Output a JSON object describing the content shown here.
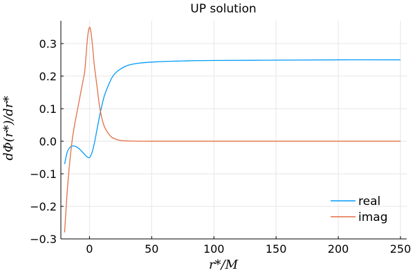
{
  "chart_data": {
    "type": "line",
    "title": "UP solution",
    "xlabel": "r*/M",
    "ylabel": "dΦ(r*)/dr*",
    "xlim": [
      -23,
      255
    ],
    "ylim": [
      -0.3,
      0.37
    ],
    "xticks": [
      0,
      50,
      100,
      150,
      200,
      250
    ],
    "xtick_labels": [
      "0",
      "50",
      "100",
      "150",
      "200",
      "250"
    ],
    "yticks": [
      -0.3,
      -0.2,
      -0.1,
      0.0,
      0.1,
      0.2,
      0.3
    ],
    "ytick_labels": [
      "−0.3",
      "−0.2",
      "−0.1",
      "0.0",
      "0.1",
      "0.2",
      "0.3"
    ],
    "grid": true,
    "legend_position": "bottom-right",
    "series": [
      {
        "name": "real",
        "color": "#009AFA",
        "x": [
          -20,
          -18,
          -16,
          -14,
          -12,
          -10,
          -8,
          -6,
          -4,
          -2,
          0,
          2,
          4,
          6,
          8,
          10,
          12,
          15,
          18,
          21,
          25,
          30,
          35,
          40,
          50,
          60,
          80,
          100,
          150,
          200,
          250
        ],
        "y": [
          -0.07,
          -0.035,
          -0.02,
          -0.015,
          -0.015,
          -0.018,
          -0.024,
          -0.032,
          -0.04,
          -0.048,
          -0.05,
          -0.035,
          -0.005,
          0.035,
          0.075,
          0.11,
          0.14,
          0.17,
          0.195,
          0.21,
          0.222,
          0.232,
          0.237,
          0.24,
          0.243,
          0.245,
          0.247,
          0.248,
          0.249,
          0.25,
          0.25
        ]
      },
      {
        "name": "imag",
        "color": "#E26F46",
        "x": [
          -20,
          -18,
          -16,
          -14,
          -12,
          -10,
          -8,
          -6,
          -4,
          -3,
          -2,
          -1,
          0,
          1,
          2,
          3,
          4,
          6,
          8,
          10,
          12,
          15,
          18,
          22,
          26,
          30,
          40,
          50,
          100,
          150,
          200,
          250
        ],
        "y": [
          -0.28,
          -0.16,
          -0.07,
          0.0,
          0.05,
          0.09,
          0.13,
          0.17,
          0.21,
          0.25,
          0.3,
          0.335,
          0.35,
          0.34,
          0.31,
          0.27,
          0.23,
          0.17,
          0.11,
          0.07,
          0.045,
          0.025,
          0.012,
          0.005,
          0.002,
          0.001,
          0.0,
          0.0,
          0.0,
          0.0,
          0.0,
          0.0
        ]
      }
    ]
  }
}
